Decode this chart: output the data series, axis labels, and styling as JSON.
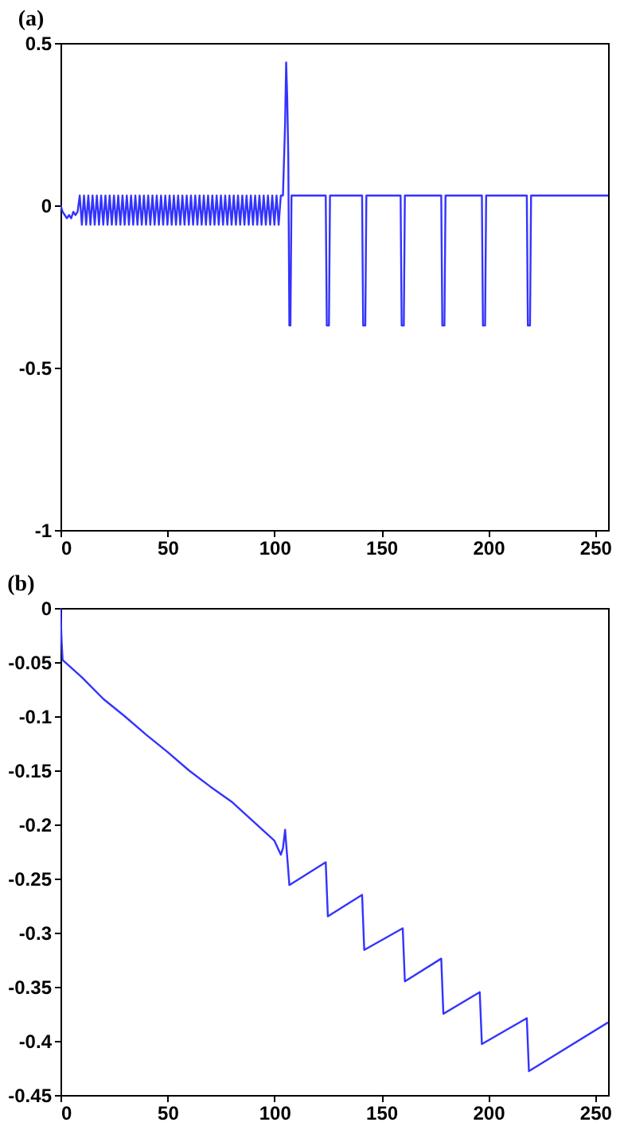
{
  "chart_data": [
    {
      "type": "line",
      "title": "(a)",
      "xlim": [
        0,
        256
      ],
      "xticks": [
        0,
        50,
        100,
        150,
        200,
        250
      ],
      "ylim": [
        -1,
        0.5
      ],
      "yticks": [
        -1,
        -0.5,
        0,
        0.5
      ],
      "x": [
        0,
        1,
        2,
        3,
        4,
        5,
        6,
        7,
        8,
        9,
        10,
        11,
        12,
        13,
        14,
        15,
        16,
        17,
        18,
        19,
        20,
        21,
        22,
        23,
        24,
        25,
        26,
        27,
        28,
        29,
        30,
        31,
        32,
        33,
        34,
        35,
        36,
        37,
        38,
        39,
        40,
        41,
        42,
        43,
        44,
        45,
        46,
        47,
        48,
        49,
        50,
        51,
        52,
        53,
        54,
        55,
        56,
        57,
        58,
        59,
        60,
        61,
        62,
        63,
        64,
        65,
        66,
        67,
        68,
        69,
        70,
        71,
        72,
        73,
        74,
        75,
        76,
        77,
        78,
        79,
        80,
        81,
        82,
        83,
        84,
        85,
        86,
        87,
        88,
        89,
        90,
        91,
        92,
        93,
        94,
        95,
        96,
        97,
        98,
        99,
        100,
        101,
        102,
        103,
        104,
        105,
        105.5,
        106,
        106.5,
        107,
        107.5,
        108,
        124,
        124.5,
        125.5,
        126,
        141,
        141.5,
        142.5,
        143,
        159,
        159.5,
        160.5,
        161,
        178,
        178.5,
        179.5,
        180,
        197,
        197.5,
        198.5,
        199,
        218,
        218.5,
        219.5,
        220,
        256
      ],
      "series": [
        {
          "color": "#3333ff",
          "values": [
            0,
            -0.02,
            -0.03,
            -0.04,
            -0.03,
            -0.04,
            -0.02,
            -0.03,
            -0.02,
            0.03,
            -0.06,
            0.03,
            -0.06,
            0.03,
            -0.06,
            0.03,
            -0.06,
            0.03,
            -0.06,
            0.03,
            -0.06,
            0.03,
            -0.06,
            0.03,
            -0.06,
            0.03,
            -0.06,
            0.03,
            -0.06,
            0.03,
            -0.06,
            0.03,
            -0.06,
            0.03,
            -0.06,
            0.03,
            -0.06,
            0.03,
            -0.06,
            0.03,
            -0.06,
            0.03,
            -0.06,
            0.03,
            -0.06,
            0.03,
            -0.06,
            0.03,
            -0.06,
            0.03,
            -0.06,
            0.03,
            -0.06,
            0.03,
            -0.06,
            0.03,
            -0.06,
            0.03,
            -0.06,
            0.03,
            -0.06,
            0.03,
            -0.06,
            0.03,
            -0.06,
            0.03,
            -0.06,
            0.03,
            -0.06,
            0.03,
            -0.06,
            0.03,
            -0.06,
            0.03,
            -0.06,
            0.03,
            -0.06,
            0.03,
            -0.06,
            0.03,
            -0.06,
            0.03,
            -0.06,
            0.03,
            -0.06,
            0.03,
            -0.06,
            0.03,
            -0.06,
            0.03,
            -0.06,
            0.03,
            -0.06,
            0.03,
            -0.06,
            0.03,
            -0.06,
            0.03,
            -0.06,
            0.03,
            -0.06,
            0.03,
            -0.06,
            0.03,
            0.03,
            0.25,
            0.44,
            0.33,
            0.15,
            -0.37,
            -0.37,
            0.03,
            0.03,
            -0.37,
            -0.37,
            0.03,
            0.03,
            -0.37,
            -0.37,
            0.03,
            0.03,
            -0.37,
            -0.37,
            0.03,
            0.03,
            -0.37,
            -0.37,
            0.03,
            0.03,
            -0.37,
            -0.37,
            0.03,
            0.03,
            -0.37,
            -0.37,
            0.03,
            0.03
          ]
        }
      ]
    },
    {
      "type": "line",
      "title": "(b)",
      "xlim": [
        0,
        256
      ],
      "xticks": [
        0,
        50,
        100,
        150,
        200,
        250
      ],
      "ylim": [
        -0.45,
        0
      ],
      "yticks": [
        -0.45,
        -0.4,
        -0.35,
        -0.3,
        -0.25,
        -0.2,
        -0.15,
        -0.1,
        -0.05,
        0
      ],
      "x": [
        0,
        0.5,
        1,
        10,
        20,
        30,
        40,
        50,
        60,
        70,
        80,
        90,
        100,
        103,
        104,
        105,
        106,
        107,
        124,
        125,
        141,
        142,
        160,
        161,
        178,
        179,
        196,
        197,
        218,
        219,
        256
      ],
      "series": [
        {
          "color": "#3333ff",
          "values": [
            0,
            -0.03,
            -0.048,
            -0.064,
            -0.084,
            -0.1,
            -0.117,
            -0.133,
            -0.15,
            -0.165,
            -0.179,
            -0.197,
            -0.215,
            -0.228,
            -0.222,
            -0.205,
            -0.23,
            -0.256,
            -0.235,
            -0.285,
            -0.265,
            -0.316,
            -0.296,
            -0.345,
            -0.324,
            -0.375,
            -0.355,
            -0.403,
            -0.379,
            -0.428,
            -0.383
          ]
        }
      ]
    }
  ]
}
